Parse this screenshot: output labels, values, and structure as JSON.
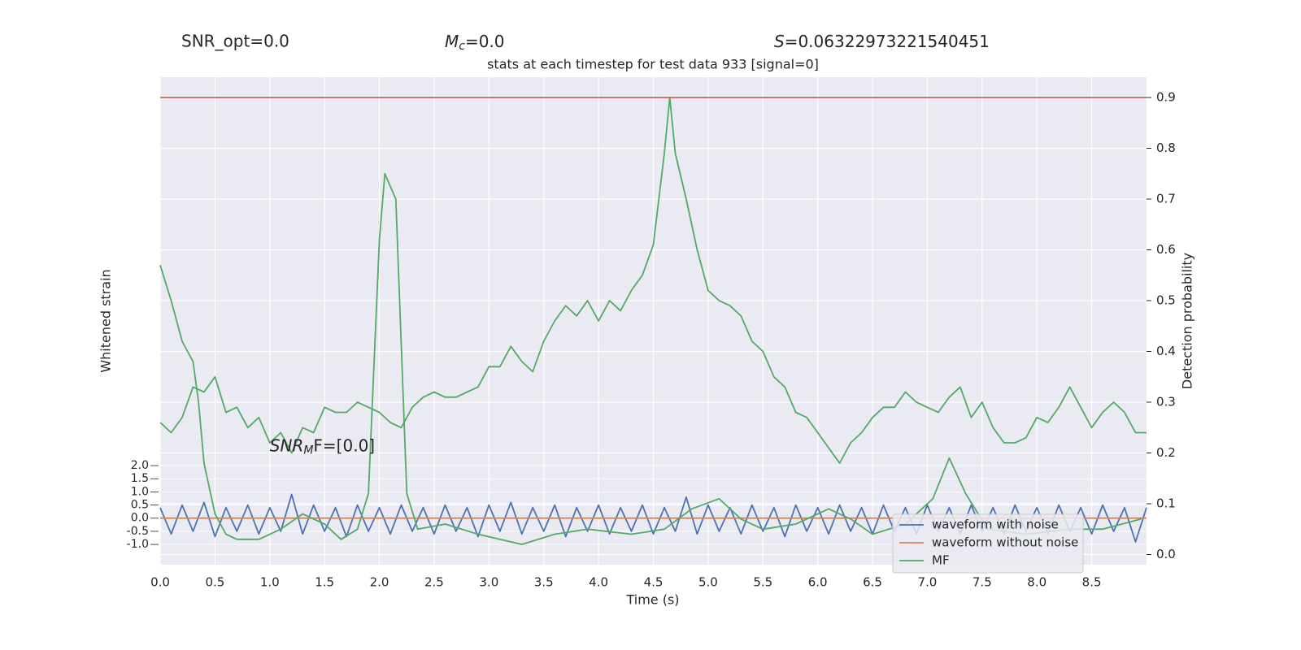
{
  "chart_data": {
    "type": "line",
    "stats": {
      "snr_opt": "SNR_opt=0.0",
      "mc_symbol": "M",
      "mc_sub": "c",
      "mc_rest": "=0.0",
      "s_symbol": "S",
      "s_rest": "=0.06322973221540451"
    },
    "title": "stats at each timestep for test data 933 [signal=0]",
    "annotation": {
      "symbol": "SNR",
      "sub": "M",
      "rest": "F=[0.0]",
      "x": 1.0,
      "y": 0.2
    },
    "xlabel": "Time (s)",
    "ylabel": "Whitened strain",
    "y2label": "Detection probability",
    "xlim": [
      0,
      9.0
    ],
    "ylim": [
      -1.77,
      16.78
    ],
    "y2lim": [
      -0.02,
      0.94
    ],
    "xticks": [
      {
        "value": 0,
        "label": "0.0"
      },
      0.5,
      {
        "value": 1,
        "label": "1.0"
      },
      1.5,
      {
        "value": 2,
        "label": "2.0"
      },
      2.5,
      {
        "value": 3,
        "label": "3.0"
      },
      3.5,
      {
        "value": 4,
        "label": "4.0"
      },
      4.5,
      {
        "value": 5,
        "label": "5.0"
      },
      5.5,
      {
        "value": 6,
        "label": "6.0"
      },
      6.5,
      {
        "value": 7,
        "label": "7.0"
      },
      7.5,
      {
        "value": 8,
        "label": "8.0"
      },
      8.5
    ],
    "yticks": [
      {
        "value": -1,
        "label": "-1.0"
      },
      -0.5,
      {
        "value": 0,
        "label": "0.0"
      },
      0.5,
      {
        "value": 1,
        "label": "1.0"
      },
      1.5,
      {
        "value": 2,
        "label": "2.0"
      }
    ],
    "y2ticks": [
      {
        "value": 0,
        "label": "0.0"
      },
      0.1,
      0.2,
      0.3,
      0.4,
      0.5,
      0.6,
      0.7,
      0.8,
      0.9
    ],
    "threshold": {
      "value": 0.9,
      "color": "#c44e52",
      "axis": "y2"
    },
    "grid": true,
    "legend": "lower right",
    "series": [
      {
        "name": "waveform with noise",
        "color": "#4c72b0",
        "axis": "y",
        "x": [
          0,
          0.1,
          0.2,
          0.3,
          0.4,
          0.5,
          0.6,
          0.7,
          0.8,
          0.9,
          1,
          1.1,
          1.2,
          1.3,
          1.4,
          1.5,
          1.6,
          1.7,
          1.8,
          1.9,
          2,
          2.1,
          2.2,
          2.3,
          2.4,
          2.5,
          2.6,
          2.7,
          2.8,
          2.9,
          3,
          3.1,
          3.2,
          3.3,
          3.4,
          3.5,
          3.6,
          3.7,
          3.8,
          3.9,
          4,
          4.1,
          4.2,
          4.3,
          4.4,
          4.5,
          4.6,
          4.7,
          4.8,
          4.9,
          5,
          5.1,
          5.2,
          5.3,
          5.4,
          5.5,
          5.6,
          5.7,
          5.8,
          5.9,
          6,
          6.1,
          6.2,
          6.3,
          6.4,
          6.5,
          6.6,
          6.7,
          6.8,
          6.9,
          7,
          7.1,
          7.2,
          7.3,
          7.4,
          7.5,
          7.6,
          7.7,
          7.8,
          7.9,
          8,
          8.1,
          8.2,
          8.3,
          8.4,
          8.5,
          8.6,
          8.7,
          8.8,
          8.9,
          9
        ],
        "values": [
          0.4,
          -0.6,
          0.5,
          -0.5,
          0.6,
          -0.7,
          0.4,
          -0.5,
          0.5,
          -0.6,
          0.4,
          -0.5,
          0.9,
          -0.6,
          0.5,
          -0.5,
          0.4,
          -0.7,
          0.5,
          -0.5,
          0.4,
          -0.6,
          0.5,
          -0.5,
          0.4,
          -0.6,
          0.5,
          -0.5,
          0.4,
          -0.7,
          0.5,
          -0.5,
          0.6,
          -0.6,
          0.4,
          -0.5,
          0.5,
          -0.7,
          0.4,
          -0.5,
          0.5,
          -0.6,
          0.4,
          -0.5,
          0.5,
          -0.6,
          0.4,
          -0.5,
          0.8,
          -0.6,
          0.5,
          -0.5,
          0.4,
          -0.6,
          0.5,
          -0.5,
          0.4,
          -0.7,
          0.5,
          -0.5,
          0.4,
          -0.6,
          0.5,
          -0.5,
          0.4,
          -0.6,
          0.5,
          -0.5,
          0.4,
          -0.6,
          0.5,
          -0.5,
          0.4,
          -0.6,
          0.5,
          -0.5,
          0.4,
          -0.6,
          0.5,
          -0.5,
          0.4,
          -0.6,
          0.5,
          -0.5,
          0.4,
          -0.6,
          0.5,
          -0.5,
          0.4,
          -0.9,
          0.4
        ]
      },
      {
        "name": "waveform without noise",
        "color": "#dd8452",
        "axis": "y",
        "x": [
          0,
          9.0
        ],
        "values": [
          0,
          0
        ]
      },
      {
        "name": "MF",
        "color": "#55a868",
        "axis": "y2",
        "x": [
          0,
          0.1,
          0.2,
          0.3,
          0.35,
          0.4,
          0.5,
          0.6,
          0.7,
          0.9,
          1.1,
          1.3,
          1.5,
          1.65,
          1.8,
          1.9,
          2.0,
          2.05,
          2.15,
          2.25,
          2.35,
          2.6,
          2.9,
          3.3,
          3.6,
          3.9,
          4.3,
          4.6,
          4.85,
          5.1,
          5.3,
          5.5,
          5.8,
          6.1,
          6.3,
          6.5,
          6.8,
          7.05,
          7.2,
          7.35,
          7.55,
          7.9,
          8.3,
          8.6,
          8.95
        ],
        "values": [
          0.57,
          0.5,
          0.42,
          0.38,
          0.3,
          0.18,
          0.08,
          0.04,
          0.03,
          0.03,
          0.05,
          0.08,
          0.06,
          0.03,
          0.05,
          0.12,
          0.62,
          0.75,
          0.7,
          0.12,
          0.05,
          0.06,
          0.04,
          0.02,
          0.04,
          0.05,
          0.04,
          0.05,
          0.09,
          0.11,
          0.07,
          0.05,
          0.06,
          0.09,
          0.07,
          0.04,
          0.06,
          0.11,
          0.19,
          0.12,
          0.05,
          0.04,
          0.05,
          0.05,
          0.07
        ]
      },
      {
        "color": "#55a868",
        "axis": "y2",
        "x": [
          0,
          0.1,
          0.2,
          0.3,
          0.4,
          0.5,
          0.6,
          0.7,
          0.8,
          0.9,
          1,
          1.1,
          1.2,
          1.3,
          1.4,
          1.5,
          1.6,
          1.7,
          1.8,
          1.9,
          2,
          2.1,
          2.2,
          2.3,
          2.4,
          2.5,
          2.6,
          2.7,
          2.8,
          2.9,
          3,
          3.1,
          3.2,
          3.3,
          3.4,
          3.5,
          3.6,
          3.7,
          3.8,
          3.9,
          4,
          4.1,
          4.2,
          4.3,
          4.4,
          4.5,
          4.6,
          4.65,
          4.7,
          4.8,
          4.9,
          5,
          5.1,
          5.2,
          5.3,
          5.4,
          5.5,
          5.6,
          5.7,
          5.8,
          5.9,
          6,
          6.1,
          6.2,
          6.3,
          6.4,
          6.5,
          6.6,
          6.7,
          6.8,
          6.9,
          7,
          7.1,
          7.2,
          7.3,
          7.4,
          7.5,
          7.6,
          7.7,
          7.8,
          7.9,
          8,
          8.1,
          8.2,
          8.3,
          8.4,
          8.5,
          8.6,
          8.7,
          8.8,
          8.9,
          9
        ],
        "values": [
          0.26,
          0.24,
          0.27,
          0.33,
          0.32,
          0.35,
          0.28,
          0.29,
          0.25,
          0.27,
          0.22,
          0.24,
          0.2,
          0.25,
          0.24,
          0.29,
          0.28,
          0.28,
          0.3,
          0.29,
          0.28,
          0.26,
          0.25,
          0.29,
          0.31,
          0.32,
          0.31,
          0.31,
          0.32,
          0.33,
          0.37,
          0.37,
          0.41,
          0.38,
          0.36,
          0.42,
          0.46,
          0.49,
          0.47,
          0.5,
          0.46,
          0.5,
          0.48,
          0.52,
          0.55,
          0.61,
          0.79,
          0.9,
          0.79,
          0.7,
          0.6,
          0.52,
          0.5,
          0.49,
          0.47,
          0.42,
          0.4,
          0.35,
          0.33,
          0.28,
          0.27,
          0.24,
          0.21,
          0.18,
          0.22,
          0.24,
          0.27,
          0.29,
          0.29,
          0.32,
          0.3,
          0.29,
          0.28,
          0.31,
          0.33,
          0.27,
          0.3,
          0.25,
          0.22,
          0.22,
          0.23,
          0.27,
          0.26,
          0.29,
          0.33,
          0.29,
          0.25,
          0.28,
          0.3,
          0.28,
          0.24,
          0.24
        ]
      }
    ]
  }
}
